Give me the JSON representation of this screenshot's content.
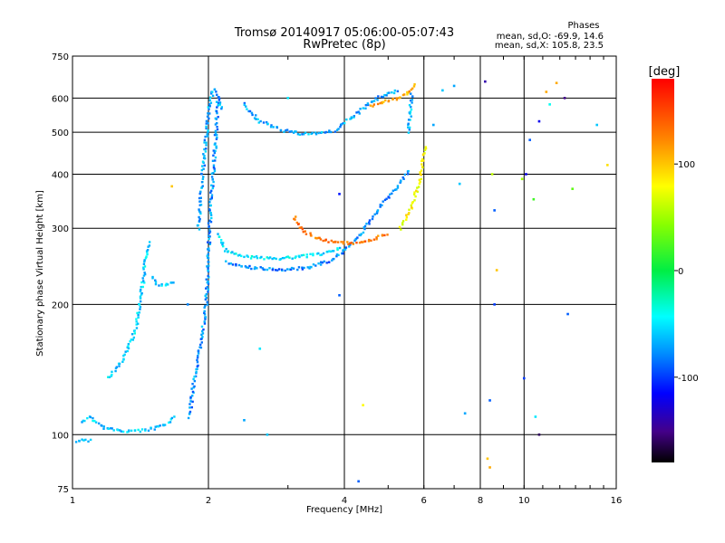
{
  "header": {
    "title_line1": "Tromsø 20140917 05:06:00-05:07:43",
    "title_line2": "RwPretec (8p)"
  },
  "stats": {
    "label": "Phases",
    "line1": "mean, sd,O: -69.9, 14.6",
    "line2": "mean, sd,X: 105.8, 23.5"
  },
  "colorbar": {
    "unit": "[deg]",
    "range": [
      -180,
      180
    ],
    "ticks": [
      100,
      0,
      -100
    ],
    "tick_labels": [
      "100",
      "0",
      "-100"
    ]
  },
  "chart_data": {
    "type": "scatter",
    "xlabel": "Frequency [MHz]",
    "ylabel": "Stationary phase Virtual Height [km]",
    "x_scale": "log",
    "y_scale": "log",
    "xlim": [
      1,
      16
    ],
    "ylim": [
      75,
      750
    ],
    "x_ticks": [
      1,
      2,
      4,
      6,
      8,
      10,
      16
    ],
    "x_tick_labels": [
      "1",
      "2",
      "4",
      "6",
      "8",
      "10",
      "16"
    ],
    "y_ticks": [
      75,
      100,
      200,
      300,
      400,
      500,
      600,
      750
    ],
    "y_tick_labels": [
      "75",
      "100",
      "200",
      "300",
      "400",
      "500",
      "600",
      "750"
    ],
    "grid": true,
    "traces": [
      {
        "name": "",
        "phase": -60,
        "points": [
          [
            1.05,
            107
          ],
          [
            1.1,
            110
          ],
          [
            1.15,
            105
          ],
          [
            1.2,
            103
          ],
          [
            1.3,
            102
          ],
          [
            1.4,
            102
          ],
          [
            1.5,
            103
          ],
          [
            1.6,
            105
          ],
          [
            1.7,
            110
          ]
        ]
      },
      {
        "name": "",
        "phase": -70,
        "points": [
          [
            1.02,
            96
          ],
          [
            1.05,
            98
          ],
          [
            1.08,
            97
          ],
          [
            1.1,
            98
          ]
        ]
      },
      {
        "name": "",
        "phase": -55,
        "points": [
          [
            1.2,
            135
          ],
          [
            1.3,
            150
          ],
          [
            1.38,
            175
          ],
          [
            1.42,
            210
          ],
          [
            1.45,
            250
          ],
          [
            1.48,
            280
          ]
        ]
      },
      {
        "name": "",
        "phase": -60,
        "points": [
          [
            1.5,
            230
          ],
          [
            1.55,
            222
          ],
          [
            1.6,
            222
          ],
          [
            1.65,
            224
          ],
          [
            1.7,
            225
          ]
        ]
      },
      {
        "name": "",
        "phase": -75,
        "points": [
          [
            1.82,
            110
          ],
          [
            1.85,
            130
          ],
          [
            1.9,
            150
          ],
          [
            1.95,
            180
          ],
          [
            1.98,
            200
          ],
          [
            2.0,
            260
          ],
          [
            2.02,
            330
          ],
          [
            2.05,
            400
          ],
          [
            2.08,
            500
          ],
          [
            2.1,
            600
          ]
        ]
      },
      {
        "name": "",
        "phase": -70,
        "points": [
          [
            1.9,
            300
          ],
          [
            1.95,
            420
          ],
          [
            2.0,
            550
          ],
          [
            2.05,
            630
          ],
          [
            2.1,
            600
          ],
          [
            2.15,
            560
          ]
        ]
      },
      {
        "name": "",
        "phase": -50,
        "points": [
          [
            2.1,
            290
          ],
          [
            2.2,
            265
          ],
          [
            2.4,
            258
          ],
          [
            2.8,
            255
          ],
          [
            3.2,
            258
          ],
          [
            3.6,
            262
          ],
          [
            4.0,
            270
          ]
        ]
      },
      {
        "name": "",
        "phase": -80,
        "points": [
          [
            2.2,
            250
          ],
          [
            2.5,
            243
          ],
          [
            2.9,
            240
          ],
          [
            3.3,
            243
          ],
          [
            3.7,
            252
          ],
          [
            4.0,
            265
          ],
          [
            4.4,
            295
          ],
          [
            4.8,
            335
          ],
          [
            5.3,
            380
          ],
          [
            5.6,
            410
          ]
        ]
      },
      {
        "name": "",
        "phase": -70,
        "points": [
          [
            2.4,
            580
          ],
          [
            2.6,
            530
          ],
          [
            2.9,
            505
          ],
          [
            3.2,
            497
          ],
          [
            3.5,
            497
          ],
          [
            3.8,
            505
          ],
          [
            4.2,
            545
          ],
          [
            4.6,
            590
          ],
          [
            5.0,
            615
          ],
          [
            5.3,
            625
          ]
        ]
      },
      {
        "name": "",
        "phase": 130,
        "points": [
          [
            3.1,
            320
          ],
          [
            3.2,
            300
          ],
          [
            3.4,
            287
          ],
          [
            3.7,
            280
          ],
          [
            4.0,
            277
          ],
          [
            4.3,
            278
          ],
          [
            4.7,
            284
          ],
          [
            5.0,
            292
          ]
        ]
      },
      {
        "name": "",
        "phase": 80,
        "points": [
          [
            5.3,
            300
          ],
          [
            5.6,
            330
          ],
          [
            5.85,
            380
          ],
          [
            6.0,
            440
          ],
          [
            6.05,
            470
          ]
        ]
      },
      {
        "name": "",
        "phase": -65,
        "points": [
          [
            5.55,
            500
          ],
          [
            5.6,
            560
          ],
          [
            5.65,
            620
          ]
        ]
      },
      {
        "name": "",
        "phase": 110,
        "points": [
          [
            4.6,
            575
          ],
          [
            5.0,
            590
          ],
          [
            5.5,
            610
          ],
          [
            5.8,
            650
          ]
        ]
      }
    ],
    "scattered_points": [
      [
        7.0,
        640,
        -70
      ],
      [
        7.2,
        380,
        -60
      ],
      [
        8.2,
        655,
        -140
      ],
      [
        8.5,
        400,
        60
      ],
      [
        8.6,
        330,
        -90
      ],
      [
        8.7,
        240,
        100
      ],
      [
        8.6,
        200,
        -100
      ],
      [
        8.4,
        120,
        -90
      ],
      [
        10.1,
        400,
        -120
      ],
      [
        10.3,
        480,
        -90
      ],
      [
        10.5,
        350,
        20
      ],
      [
        10.8,
        530,
        -120
      ],
      [
        11.2,
        620,
        110
      ],
      [
        11.4,
        580,
        -40
      ],
      [
        11.8,
        650,
        110
      ],
      [
        12.3,
        600,
        -150
      ],
      [
        12.8,
        370,
        30
      ],
      [
        12.5,
        190,
        -90
      ],
      [
        10.0,
        135,
        -100
      ],
      [
        10.6,
        110,
        -50
      ],
      [
        10.8,
        100,
        -160
      ],
      [
        14.5,
        520,
        -60
      ],
      [
        15.3,
        420,
        90
      ],
      [
        9.9,
        390,
        50
      ],
      [
        6.6,
        625,
        -60
      ],
      [
        6.3,
        520,
        -70
      ],
      [
        8.3,
        88,
        100
      ],
      [
        8.4,
        84,
        110
      ],
      [
        4.4,
        117,
        80
      ],
      [
        7.4,
        112,
        -70
      ],
      [
        4.3,
        78,
        -90
      ],
      [
        3.9,
        360,
        -110
      ],
      [
        3.9,
        210,
        -90
      ],
      [
        3.0,
        600,
        -50
      ],
      [
        1.66,
        375,
        100
      ],
      [
        1.8,
        200,
        -80
      ],
      [
        2.7,
        100,
        -60
      ],
      [
        2.6,
        158,
        -50
      ],
      [
        2.4,
        108,
        -70
      ]
    ]
  }
}
